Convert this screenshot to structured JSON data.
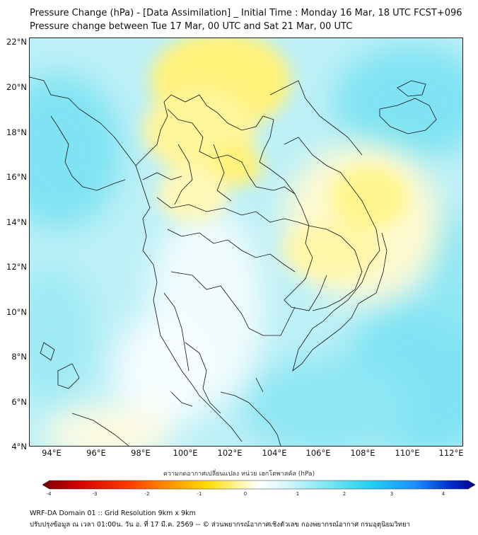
{
  "title": {
    "line1": "Pressure Change (hPa) - [Data Assimilation] _ Initial Time : Monday 16 Mar, 18 UTC FCST+096",
    "line2": "Pressure change between Tue 17 Mar, 00 UTC and Sat 21 Mar, 00 UTC"
  },
  "axes": {
    "lat_labels": [
      "22°N",
      "20°N",
      "18°N",
      "16°N",
      "14°N",
      "12°N",
      "10°N",
      "8°N",
      "6°N",
      "4°N"
    ],
    "lon_labels": [
      "94°E",
      "96°E",
      "98°E",
      "100°E",
      "102°E",
      "104°E",
      "106°E",
      "108°E",
      "110°E",
      "112°E"
    ],
    "lat_range": [
      4,
      22
    ],
    "lon_range": [
      93,
      112.5
    ]
  },
  "colorbar": {
    "title": "ความกดอากาศเปลี่ยนแปลง หน่วย เฮกโตพาสคัล (hPa)",
    "ticks": [
      "-4",
      "-3",
      "-2",
      "-1",
      "0",
      "1",
      "2",
      "3",
      "4"
    ],
    "range": [
      -4,
      4
    ],
    "colors": {
      "neg_strong": "#7a0000",
      "neg_mid": "#ff2a00",
      "neg_light": "#ffd400",
      "near_zero": "#ffffff",
      "pos_light": "#bff4ff",
      "pos_mid": "#33d8f2",
      "pos_strong": "#00008b"
    }
  },
  "map": {
    "base_color": "#bdf0f7",
    "positive_color": "#7fe3f3",
    "negative_color": "#fff27a",
    "border_color": "#111111"
  },
  "footer": {
    "line1": "WRF-DA Domain 01 :: Grid Resolution 9km x 9km",
    "line2": "ปรับปรุงข้อมูล ณ เวลา 01:00น. วัน อ. ที่ 17 มี.ค. 2569 -- © ส่วนพยากรณ์อากาศเชิงตัวเลข กองพยากรณ์อากาศ กรมอุตุนิยมวิทยา"
  }
}
